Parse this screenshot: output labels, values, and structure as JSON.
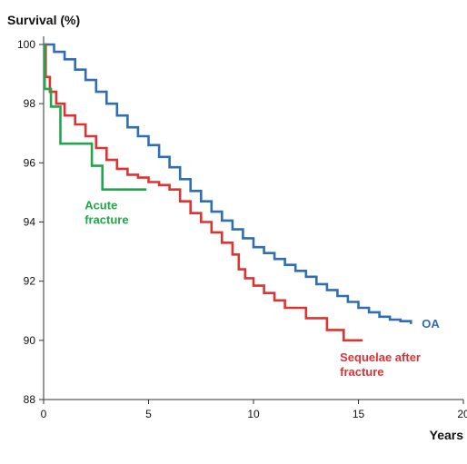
{
  "chart_data": {
    "type": "line",
    "ylabel": "Survival (%)",
    "xlabel": "Years",
    "xlim": [
      0,
      20
    ],
    "ylim": [
      88,
      100
    ],
    "x_ticks": [
      "0",
      "5",
      "10",
      "15",
      "20"
    ],
    "y_ticks": [
      "88",
      "90",
      "92",
      "94",
      "96",
      "98",
      "100"
    ],
    "grid": false,
    "step": true,
    "series": [
      {
        "name": "OA",
        "color": "#2f6db5",
        "points": [
          [
            0,
            100
          ],
          [
            0.5,
            99.75
          ],
          [
            1,
            99.5
          ],
          [
            1.5,
            99.15
          ],
          [
            2,
            98.8
          ],
          [
            2.5,
            98.4
          ],
          [
            3,
            98.0
          ],
          [
            3.5,
            97.6
          ],
          [
            4,
            97.2
          ],
          [
            4.5,
            96.9
          ],
          [
            5,
            96.6
          ],
          [
            5.5,
            96.2
          ],
          [
            6,
            95.85
          ],
          [
            6.5,
            95.45
          ],
          [
            7,
            95.05
          ],
          [
            7.5,
            94.7
          ],
          [
            8,
            94.35
          ],
          [
            8.5,
            94.05
          ],
          [
            9,
            93.75
          ],
          [
            9.5,
            93.45
          ],
          [
            10,
            93.15
          ],
          [
            10.5,
            92.95
          ],
          [
            11,
            92.75
          ],
          [
            11.5,
            92.55
          ],
          [
            12,
            92.35
          ],
          [
            12.5,
            92.15
          ],
          [
            13,
            91.9
          ],
          [
            13.5,
            91.7
          ],
          [
            14,
            91.5
          ],
          [
            14.5,
            91.3
          ],
          [
            15,
            91.1
          ],
          [
            15.5,
            90.95
          ],
          [
            16,
            90.8
          ],
          [
            16.5,
            90.7
          ],
          [
            17,
            90.65
          ],
          [
            17.5,
            90.55
          ]
        ]
      },
      {
        "name": "Sequelae after\nfracture",
        "color": "#e03232",
        "points": [
          [
            0,
            100
          ],
          [
            0.1,
            98.9
          ],
          [
            0.3,
            98.4
          ],
          [
            0.6,
            98.0
          ],
          [
            1,
            97.6
          ],
          [
            1.5,
            97.3
          ],
          [
            2,
            96.9
          ],
          [
            2.5,
            96.5
          ],
          [
            3,
            96.1
          ],
          [
            3.5,
            95.8
          ],
          [
            4,
            95.6
          ],
          [
            4.5,
            95.5
          ],
          [
            5,
            95.35
          ],
          [
            5.5,
            95.25
          ],
          [
            6,
            95.1
          ],
          [
            6.5,
            94.7
          ],
          [
            7,
            94.3
          ],
          [
            7.5,
            94.0
          ],
          [
            8,
            93.65
          ],
          [
            8.5,
            93.3
          ],
          [
            9,
            92.9
          ],
          [
            9.3,
            92.4
          ],
          [
            9.6,
            92.1
          ],
          [
            10,
            91.85
          ],
          [
            10.5,
            91.6
          ],
          [
            11,
            91.35
          ],
          [
            11.5,
            91.1
          ],
          [
            12,
            91.1
          ],
          [
            12.5,
            90.75
          ],
          [
            13,
            90.75
          ],
          [
            13.5,
            90.35
          ],
          [
            14,
            90.35
          ],
          [
            14.3,
            90.0
          ],
          [
            14.7,
            90.0
          ],
          [
            15.2,
            90.0
          ]
        ]
      },
      {
        "name": "Acute\nfracture",
        "color": "#1fa84a",
        "points": [
          [
            0,
            100
          ],
          [
            0.05,
            98.5
          ],
          [
            0.35,
            97.9
          ],
          [
            0.8,
            96.65
          ],
          [
            2.3,
            95.9
          ],
          [
            2.8,
            95.1
          ],
          [
            4.9,
            95.1
          ]
        ]
      }
    ]
  }
}
